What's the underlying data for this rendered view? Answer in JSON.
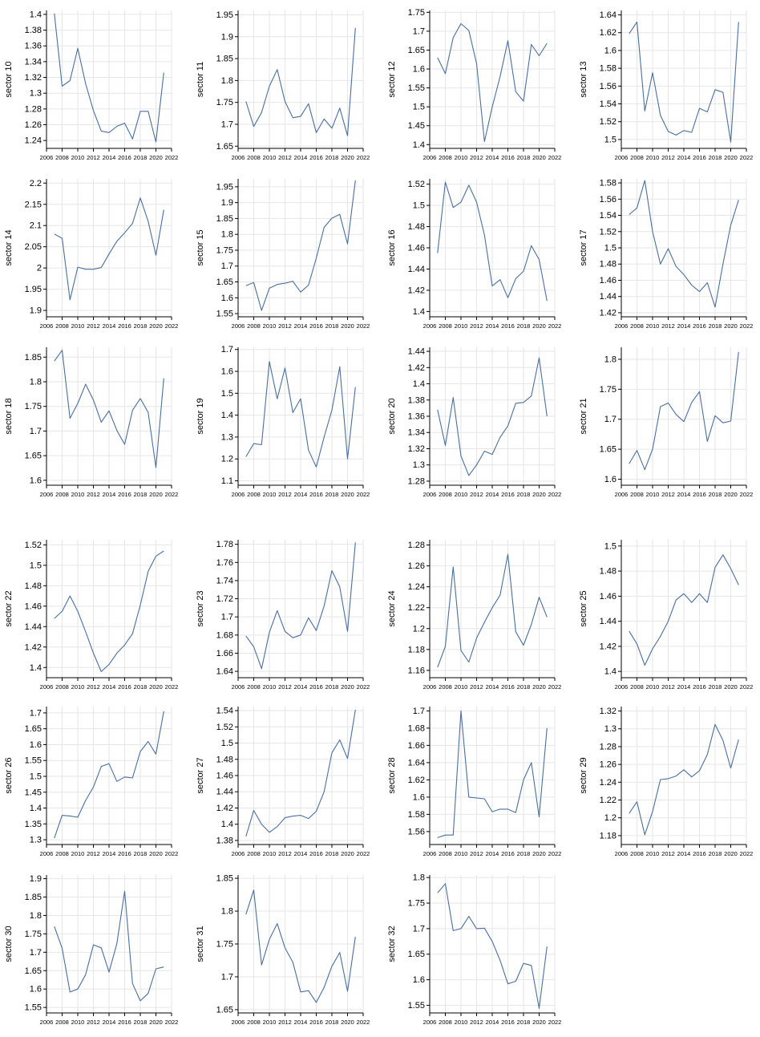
{
  "style": {
    "line_color": "#4a6f9e",
    "grid_color": "#e6e6e6",
    "axis_color": "#000000"
  },
  "x_ticks": [
    "2006",
    "2008",
    "2010",
    "2012",
    "2014",
    "2016",
    "2018",
    "2020",
    "2022"
  ],
  "chart_data": [
    {
      "type": "line",
      "ylabel": "sector 10",
      "x": [
        2007,
        2008,
        2009,
        2010,
        2011,
        2012,
        2013,
        2014,
        2015,
        2016,
        2017,
        2018,
        2019,
        2020,
        2021
      ],
      "values": [
        1.401,
        1.309,
        1.316,
        1.357,
        1.312,
        1.278,
        1.252,
        1.25,
        1.258,
        1.262,
        1.242,
        1.277,
        1.277,
        1.238,
        1.326
      ],
      "xlim": [
        2006,
        2022
      ],
      "ylim": [
        1.23,
        1.405
      ],
      "yticks": [
        "1.24",
        "1.26",
        "1.28",
        "1.3",
        "1.32",
        "1.34",
        "1.36",
        "1.38",
        "1.4"
      ]
    },
    {
      "type": "line",
      "ylabel": "sector 11",
      "x": [
        2007,
        2008,
        2009,
        2010,
        2011,
        2012,
        2013,
        2014,
        2015,
        2016,
        2017,
        2018,
        2019,
        2020,
        2021
      ],
      "values": [
        1.752,
        1.695,
        1.727,
        1.787,
        1.825,
        1.752,
        1.715,
        1.718,
        1.747,
        1.681,
        1.712,
        1.691,
        1.737,
        1.674,
        1.92
      ],
      "xlim": [
        2006,
        2022
      ],
      "ylim": [
        1.645,
        1.96
      ],
      "yticks": [
        "1.65",
        "1.7",
        "1.75",
        "1.8",
        "1.85",
        "1.9",
        "1.95"
      ]
    },
    {
      "type": "line",
      "ylabel": "sector 12",
      "x": [
        2007,
        2008,
        2009,
        2010,
        2011,
        2012,
        2013,
        2014,
        2015,
        2016,
        2017,
        2018,
        2019,
        2020,
        2021
      ],
      "values": [
        1.63,
        1.588,
        1.683,
        1.72,
        1.702,
        1.614,
        1.408,
        1.5,
        1.58,
        1.675,
        1.54,
        1.515,
        1.665,
        1.635,
        1.668
      ],
      "xlim": [
        2006,
        2022
      ],
      "ylim": [
        1.39,
        1.755
      ],
      "yticks": [
        "1.4",
        "1.45",
        "1.5",
        "1.55",
        "1.6",
        "1.65",
        "1.7",
        "1.75"
      ]
    },
    {
      "type": "line",
      "ylabel": "sector 13",
      "x": [
        2007,
        2008,
        2009,
        2010,
        2011,
        2012,
        2013,
        2014,
        2015,
        2016,
        2017,
        2018,
        2019,
        2020,
        2021
      ],
      "values": [
        1.619,
        1.632,
        1.532,
        1.575,
        1.527,
        1.509,
        1.505,
        1.51,
        1.508,
        1.535,
        1.531,
        1.556,
        1.553,
        1.497,
        1.632
      ],
      "xlim": [
        2006,
        2022
      ],
      "ylim": [
        1.49,
        1.645
      ],
      "yticks": [
        "1.5",
        "1.52",
        "1.54",
        "1.56",
        "1.58",
        "1.6",
        "1.62",
        "1.64"
      ]
    },
    {
      "type": "line",
      "ylabel": "sector 14",
      "x": [
        2007,
        2008,
        2009,
        2010,
        2011,
        2012,
        2013,
        2014,
        2015,
        2016,
        2017,
        2018,
        2019,
        2020,
        2021
      ],
      "values": [
        2.08,
        2.07,
        1.925,
        2.002,
        1.997,
        1.997,
        2.001,
        2.033,
        2.063,
        2.083,
        2.105,
        2.165,
        2.11,
        2.03,
        2.137
      ],
      "xlim": [
        2006,
        2022
      ],
      "ylim": [
        1.885,
        2.21
      ],
      "yticks": [
        "1.9",
        "1.95",
        "2",
        "2.05",
        "2.1",
        "2.15",
        "2.2"
      ]
    },
    {
      "type": "line",
      "ylabel": "sector 15",
      "x": [
        2007,
        2008,
        2009,
        2010,
        2011,
        2012,
        2013,
        2014,
        2015,
        2016,
        2017,
        2018,
        2019,
        2020,
        2021
      ],
      "values": [
        1.638,
        1.648,
        1.56,
        1.63,
        1.642,
        1.646,
        1.652,
        1.618,
        1.64,
        1.725,
        1.822,
        1.851,
        1.863,
        1.77,
        1.97
      ],
      "xlim": [
        2006,
        2022
      ],
      "ylim": [
        1.54,
        1.975
      ],
      "yticks": [
        "1.55",
        "1.6",
        "1.65",
        "1.7",
        "1.75",
        "1.8",
        "1.85",
        "1.9",
        "1.95"
      ]
    },
    {
      "type": "line",
      "ylabel": "sector 16",
      "x": [
        2007,
        2008,
        2009,
        2010,
        2011,
        2012,
        2013,
        2014,
        2015,
        2016,
        2017,
        2018,
        2019,
        2020,
        2021
      ],
      "values": [
        1.455,
        1.522,
        1.498,
        1.503,
        1.519,
        1.503,
        1.472,
        1.424,
        1.43,
        1.413,
        1.431,
        1.438,
        1.462,
        1.449,
        1.41
      ],
      "xlim": [
        2006,
        2022
      ],
      "ylim": [
        1.395,
        1.525
      ],
      "yticks": [
        "1.4",
        "1.42",
        "1.44",
        "1.46",
        "1.48",
        "1.5",
        "1.52"
      ]
    },
    {
      "type": "line",
      "ylabel": "sector 17",
      "x": [
        2007,
        2008,
        2009,
        2010,
        2011,
        2012,
        2013,
        2014,
        2015,
        2016,
        2017,
        2018,
        2019,
        2020,
        2021
      ],
      "values": [
        1.541,
        1.549,
        1.583,
        1.52,
        1.48,
        1.499,
        1.477,
        1.467,
        1.454,
        1.446,
        1.457,
        1.427,
        1.48,
        1.528,
        1.559
      ],
      "xlim": [
        2006,
        2022
      ],
      "ylim": [
        1.415,
        1.585
      ],
      "yticks": [
        "1.42",
        "1.44",
        "1.46",
        "1.48",
        "1.5",
        "1.52",
        "1.54",
        "1.56",
        "1.58"
      ]
    },
    {
      "type": "line",
      "ylabel": "sector 18",
      "x": [
        2007,
        2008,
        2009,
        2010,
        2011,
        2012,
        2013,
        2014,
        2015,
        2016,
        2017,
        2018,
        2019,
        2020,
        2021
      ],
      "values": [
        1.842,
        1.864,
        1.726,
        1.756,
        1.795,
        1.763,
        1.718,
        1.741,
        1.701,
        1.673,
        1.742,
        1.766,
        1.738,
        1.626,
        1.807
      ],
      "xlim": [
        2006,
        2022
      ],
      "ylim": [
        1.59,
        1.87
      ],
      "yticks": [
        "1.6",
        "1.65",
        "1.7",
        "1.75",
        "1.8",
        "1.85"
      ]
    },
    {
      "type": "line",
      "ylabel": "sector 19",
      "x": [
        2007,
        2008,
        2009,
        2010,
        2011,
        2012,
        2013,
        2014,
        2015,
        2016,
        2017,
        2018,
        2019,
        2020,
        2021
      ],
      "values": [
        1.21,
        1.27,
        1.265,
        1.645,
        1.475,
        1.615,
        1.412,
        1.475,
        1.24,
        1.163,
        1.3,
        1.423,
        1.621,
        1.2,
        1.528
      ],
      "xlim": [
        2006,
        2022
      ],
      "ylim": [
        1.08,
        1.71
      ],
      "yticks": [
        "1.1",
        "1.2",
        "1.3",
        "1.4",
        "1.5",
        "1.6",
        "1.7"
      ]
    },
    {
      "type": "line",
      "ylabel": "sector 20",
      "x": [
        2007,
        2008,
        2009,
        2010,
        2011,
        2012,
        2013,
        2014,
        2015,
        2016,
        2017,
        2018,
        2019,
        2020,
        2021
      ],
      "values": [
        1.368,
        1.324,
        1.383,
        1.311,
        1.287,
        1.3,
        1.317,
        1.313,
        1.334,
        1.348,
        1.376,
        1.377,
        1.385,
        1.432,
        1.36
      ],
      "xlim": [
        2006,
        2022
      ],
      "ylim": [
        1.275,
        1.445
      ],
      "yticks": [
        "1.28",
        "1.3",
        "1.32",
        "1.34",
        "1.36",
        "1.38",
        "1.4",
        "1.42",
        "1.44"
      ]
    },
    {
      "type": "line",
      "ylabel": "sector 21",
      "x": [
        2007,
        2008,
        2009,
        2010,
        2011,
        2012,
        2013,
        2014,
        2015,
        2016,
        2017,
        2018,
        2019,
        2020,
        2021
      ],
      "values": [
        1.626,
        1.648,
        1.616,
        1.65,
        1.721,
        1.727,
        1.708,
        1.696,
        1.728,
        1.746,
        1.663,
        1.706,
        1.694,
        1.697,
        1.812
      ],
      "xlim": [
        2006,
        2022
      ],
      "ylim": [
        1.59,
        1.82
      ],
      "yticks": [
        "1.6",
        "1.65",
        "1.7",
        "1.75",
        "1.8"
      ]
    },
    {
      "type": "line",
      "ylabel": "sector 22",
      "x": [
        2007,
        2008,
        2009,
        2010,
        2011,
        2012,
        2013,
        2014,
        2015,
        2016,
        2017,
        2018,
        2019,
        2020,
        2021
      ],
      "values": [
        1.448,
        1.455,
        1.47,
        1.455,
        1.435,
        1.414,
        1.396,
        1.403,
        1.414,
        1.422,
        1.433,
        1.461,
        1.494,
        1.509,
        1.514
      ],
      "xlim": [
        2006,
        2022
      ],
      "ylim": [
        1.39,
        1.525
      ],
      "yticks": [
        "1.4",
        "1.42",
        "1.44",
        "1.46",
        "1.48",
        "1.5",
        "1.52"
      ]
    },
    {
      "type": "line",
      "ylabel": "sector 23",
      "x": [
        2007,
        2008,
        2009,
        2010,
        2011,
        2012,
        2013,
        2014,
        2015,
        2016,
        2017,
        2018,
        2019,
        2020,
        2021
      ],
      "values": [
        1.679,
        1.667,
        1.643,
        1.683,
        1.707,
        1.684,
        1.677,
        1.68,
        1.699,
        1.685,
        1.712,
        1.751,
        1.733,
        1.684,
        1.782
      ],
      "xlim": [
        2006,
        2022
      ],
      "ylim": [
        1.633,
        1.785
      ],
      "yticks": [
        "1.64",
        "1.66",
        "1.68",
        "1.7",
        "1.72",
        "1.74",
        "1.76",
        "1.78"
      ]
    },
    {
      "type": "line",
      "ylabel": "sector 24",
      "x": [
        2007,
        2008,
        2009,
        2010,
        2011,
        2012,
        2013,
        2014,
        2015,
        2016,
        2017,
        2018,
        2019,
        2020,
        2021
      ],
      "values": [
        1.163,
        1.183,
        1.259,
        1.179,
        1.168,
        1.191,
        1.206,
        1.22,
        1.232,
        1.271,
        1.197,
        1.184,
        1.204,
        1.23,
        1.211
      ],
      "xlim": [
        2006,
        2022
      ],
      "ylim": [
        1.153,
        1.285
      ],
      "yticks": [
        "1.16",
        "1.18",
        "1.2",
        "1.22",
        "1.24",
        "1.26",
        "1.28"
      ]
    },
    {
      "type": "line",
      "ylabel": "sector 25",
      "x": [
        2007,
        2008,
        2009,
        2010,
        2011,
        2012,
        2013,
        2014,
        2015,
        2016,
        2017,
        2018,
        2019,
        2020,
        2021
      ],
      "values": [
        1.432,
        1.422,
        1.405,
        1.418,
        1.428,
        1.44,
        1.457,
        1.462,
        1.455,
        1.462,
        1.455,
        1.483,
        1.493,
        1.482,
        1.469
      ],
      "xlim": [
        2006,
        2022
      ],
      "ylim": [
        1.395,
        1.505
      ],
      "yticks": [
        "1.4",
        "1.42",
        "1.44",
        "1.46",
        "1.48",
        "1.5"
      ]
    },
    {
      "type": "line",
      "ylabel": "sector 26",
      "x": [
        2007,
        2008,
        2009,
        2010,
        2011,
        2012,
        2013,
        2014,
        2015,
        2016,
        2017,
        2018,
        2019,
        2020,
        2021
      ],
      "values": [
        1.305,
        1.377,
        1.375,
        1.371,
        1.424,
        1.466,
        1.531,
        1.54,
        1.484,
        1.498,
        1.495,
        1.578,
        1.61,
        1.57,
        1.705
      ],
      "xlim": [
        2006,
        2022
      ],
      "ylim": [
        1.285,
        1.72
      ],
      "yticks": [
        "1.3",
        "1.35",
        "1.4",
        "1.45",
        "1.5",
        "1.55",
        "1.6",
        "1.65",
        "1.7"
      ]
    },
    {
      "type": "line",
      "ylabel": "sector 27",
      "x": [
        2007,
        2008,
        2009,
        2010,
        2011,
        2012,
        2013,
        2014,
        2015,
        2016,
        2017,
        2018,
        2019,
        2020,
        2021
      ],
      "values": [
        1.385,
        1.417,
        1.4,
        1.39,
        1.397,
        1.408,
        1.41,
        1.411,
        1.407,
        1.416,
        1.44,
        1.488,
        1.504,
        1.481,
        1.541
      ],
      "xlim": [
        2006,
        2022
      ],
      "ylim": [
        1.375,
        1.545
      ],
      "yticks": [
        "1.38",
        "1.4",
        "1.42",
        "1.44",
        "1.46",
        "1.48",
        "1.5",
        "1.52",
        "1.54"
      ]
    },
    {
      "type": "line",
      "ylabel": "sector 28",
      "x": [
        2007,
        2008,
        2009,
        2010,
        2011,
        2012,
        2013,
        2014,
        2015,
        2016,
        2017,
        2018,
        2019,
        2020,
        2021
      ],
      "values": [
        1.553,
        1.556,
        1.556,
        1.7,
        1.6,
        1.599,
        1.598,
        1.583,
        1.586,
        1.586,
        1.582,
        1.62,
        1.64,
        1.577,
        1.68
      ],
      "xlim": [
        2006,
        2022
      ],
      "ylim": [
        1.545,
        1.705
      ],
      "yticks": [
        "1.56",
        "1.58",
        "1.6",
        "1.62",
        "1.64",
        "1.66",
        "1.68",
        "1.7"
      ]
    },
    {
      "type": "line",
      "ylabel": "sector 29",
      "x": [
        2007,
        2008,
        2009,
        2010,
        2011,
        2012,
        2013,
        2014,
        2015,
        2016,
        2017,
        2018,
        2019,
        2020,
        2021
      ],
      "values": [
        1.205,
        1.218,
        1.181,
        1.207,
        1.243,
        1.244,
        1.247,
        1.254,
        1.246,
        1.253,
        1.271,
        1.305,
        1.287,
        1.256,
        1.288
      ],
      "xlim": [
        2006,
        2022
      ],
      "ylim": [
        1.17,
        1.325
      ],
      "yticks": [
        "1.18",
        "1.2",
        "1.22",
        "1.24",
        "1.26",
        "1.28",
        "1.3",
        "1.32"
      ]
    },
    {
      "type": "line",
      "ylabel": "sector 30",
      "x": [
        2007,
        2008,
        2009,
        2010,
        2011,
        2012,
        2013,
        2014,
        2015,
        2016,
        2017,
        2018,
        2019,
        2020,
        2021
      ],
      "values": [
        1.77,
        1.711,
        1.592,
        1.6,
        1.639,
        1.72,
        1.712,
        1.646,
        1.724,
        1.866,
        1.615,
        1.568,
        1.588,
        1.655,
        1.66
      ],
      "xlim": [
        2006,
        2022
      ],
      "ylim": [
        1.535,
        1.91
      ],
      "yticks": [
        "1.55",
        "1.6",
        "1.65",
        "1.7",
        "1.75",
        "1.8",
        "1.85",
        "1.9"
      ]
    },
    {
      "type": "line",
      "ylabel": "sector 31",
      "x": [
        2007,
        2008,
        2009,
        2010,
        2011,
        2012,
        2013,
        2014,
        2015,
        2016,
        2017,
        2018,
        2019,
        2020,
        2021
      ],
      "values": [
        1.795,
        1.832,
        1.718,
        1.757,
        1.781,
        1.744,
        1.722,
        1.677,
        1.679,
        1.661,
        1.684,
        1.716,
        1.737,
        1.678,
        1.761
      ],
      "xlim": [
        2006,
        2022
      ],
      "ylim": [
        1.645,
        1.855
      ],
      "yticks": [
        "1.65",
        "1.7",
        "1.75",
        "1.8",
        "1.85"
      ]
    },
    {
      "type": "line",
      "ylabel": "sector 32",
      "x": [
        2007,
        2008,
        2009,
        2010,
        2011,
        2012,
        2013,
        2014,
        2015,
        2016,
        2017,
        2018,
        2019,
        2020,
        2021
      ],
      "values": [
        1.77,
        1.788,
        1.696,
        1.7,
        1.724,
        1.7,
        1.701,
        1.675,
        1.638,
        1.592,
        1.597,
        1.632,
        1.628,
        1.544,
        1.665
      ],
      "xlim": [
        2006,
        2022
      ],
      "ylim": [
        1.535,
        1.805
      ],
      "yticks": [
        "1.55",
        "1.6",
        "1.65",
        "1.7",
        "1.75",
        "1.8"
      ]
    }
  ]
}
